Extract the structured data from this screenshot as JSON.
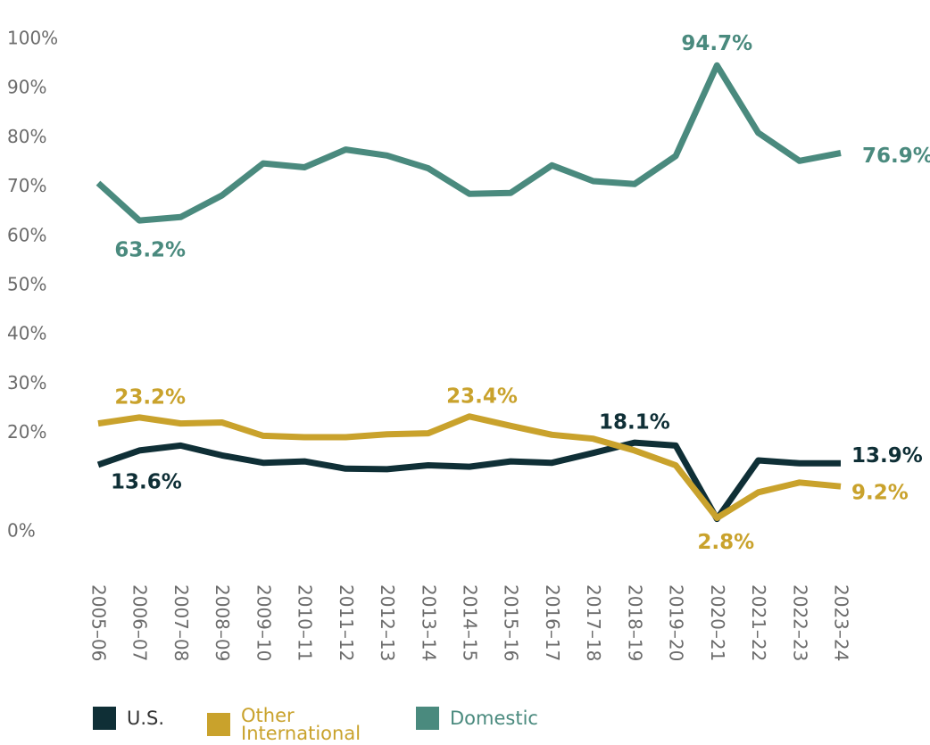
{
  "chart_data": {
    "type": "line",
    "categories": [
      "2005–06",
      "2006–07",
      "2007–08",
      "2008–09",
      "2009–10",
      "2010–11",
      "2011–12",
      "2012–13",
      "2013–14",
      "2014–15",
      "2015–16",
      "2016–17",
      "2017–18",
      "2018–19",
      "2019–20",
      "2020–21",
      "2021–22",
      "2022–23",
      "2023–24"
    ],
    "series": [
      {
        "name": "U.S.",
        "color": "#0f2f36",
        "values": [
          13.6,
          16.5,
          17.5,
          15.5,
          14,
          14.3,
          12.8,
          12.7,
          13.5,
          13.2,
          14.3,
          14,
          16,
          18.1,
          17.5,
          2.6,
          14.5,
          13.9,
          13.9
        ],
        "value_labels": [
          "13.6%",
          null,
          null,
          null,
          null,
          null,
          null,
          null,
          null,
          null,
          null,
          null,
          null,
          "18.1%",
          null,
          null,
          null,
          null,
          "13.9%"
        ]
      },
      {
        "name": "Other International",
        "color": "#c9a22c",
        "values": [
          22,
          23.2,
          22,
          22.2,
          19.5,
          19.2,
          19.2,
          19.8,
          20,
          23.4,
          21.5,
          19.7,
          18.9,
          16.5,
          13.5,
          2.8,
          8,
          10,
          9.2
        ],
        "value_labels": [
          null,
          "23.2%",
          null,
          null,
          null,
          null,
          null,
          null,
          null,
          "23.4%",
          null,
          null,
          null,
          null,
          null,
          "2.8%",
          null,
          null,
          "9.2%"
        ]
      },
      {
        "name": "Domestic",
        "color": "#4a8a7e",
        "values": [
          70.8,
          63.2,
          63.9,
          68.3,
          74.8,
          74,
          77.6,
          76.4,
          73.8,
          68.6,
          68.8,
          74.4,
          71.2,
          70.6,
          76.3,
          94.7,
          81,
          75.3,
          76.9
        ],
        "value_labels": [
          null,
          "63.2%",
          null,
          null,
          null,
          null,
          null,
          null,
          null,
          null,
          null,
          null,
          null,
          null,
          null,
          "94.7%",
          null,
          null,
          "76.9%"
        ]
      }
    ],
    "ylim": [
      0,
      100
    ],
    "yticks": [
      {
        "value": 0,
        "label": "0%"
      },
      {
        "value": 20,
        "label": "20%"
      },
      {
        "value": 30,
        "label": "30%"
      },
      {
        "value": 40,
        "label": "40%"
      },
      {
        "value": 50,
        "label": "50%"
      },
      {
        "value": 60,
        "label": "60%"
      },
      {
        "value": 70,
        "label": "70%"
      },
      {
        "value": 80,
        "label": "80%"
      },
      {
        "value": 90,
        "label": "90%"
      },
      {
        "value": 100,
        "label": "100%"
      }
    ]
  }
}
